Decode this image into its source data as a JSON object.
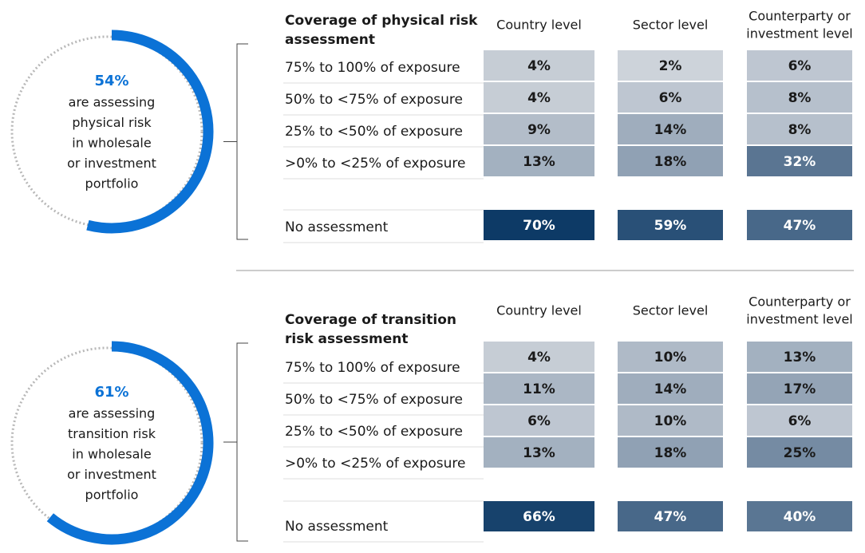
{
  "panels": [
    {
      "donut": {
        "percent": "54%",
        "text": [
          "are assessing",
          "physical risk",
          "in wholesale",
          "or investment",
          "portfolio"
        ]
      },
      "table": {
        "title": [
          "Coverage of physical risk",
          "assessment"
        ],
        "columns": [
          [
            "Country level"
          ],
          [
            "Sector level"
          ],
          [
            "Counterparty or",
            "investment level"
          ]
        ],
        "rows": [
          {
            "label": "75% to 100% of exposure",
            "cells": [
              "4%",
              "2%",
              "6%"
            ]
          },
          {
            "label": "50% to <75% of exposure",
            "cells": [
              "4%",
              "6%",
              "8%"
            ]
          },
          {
            "label": "25% to <50% of exposure",
            "cells": [
              "9%",
              "14%",
              "8%"
            ]
          },
          {
            "label": ">0% to <25% of exposure",
            "cells": [
              "13%",
              "18%",
              "32%"
            ]
          }
        ],
        "no_assessment": {
          "label": "No assessment",
          "cells": [
            "70%",
            "59%",
            "47%"
          ]
        }
      }
    },
    {
      "donut": {
        "percent": "61%",
        "text": [
          "are assessing",
          "transition risk",
          "in wholesale",
          "or investment",
          "portfolio"
        ]
      },
      "table": {
        "title": [
          "Coverage of transition",
          "risk assessment"
        ],
        "columns": [
          [
            "Country level"
          ],
          [
            "Sector level"
          ],
          [
            "Counterparty or",
            "investment level"
          ]
        ],
        "rows": [
          {
            "label": "75% to 100% of exposure",
            "cells": [
              "4%",
              "10%",
              "13%"
            ]
          },
          {
            "label": "50% to <75% of exposure",
            "cells": [
              "11%",
              "14%",
              "17%"
            ]
          },
          {
            "label": "25% to <50% of exposure",
            "cells": [
              "6%",
              "10%",
              "6%"
            ]
          },
          {
            "label": ">0% to <25% of exposure",
            "cells": [
              "13%",
              "18%",
              "25%"
            ]
          }
        ],
        "no_assessment": {
          "label": "No assessment",
          "cells": [
            "66%",
            "47%",
            "40%"
          ]
        }
      }
    }
  ]
}
